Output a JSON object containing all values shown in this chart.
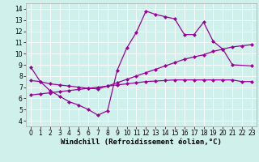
{
  "xlabel": "Windchill (Refroidissement éolien,°C)",
  "ylabel": "",
  "background_color": "#cff0eb",
  "line_color": "#990099",
  "xlim": [
    -0.5,
    23.5
  ],
  "ylim": [
    3.5,
    14.5
  ],
  "xticks": [
    0,
    1,
    2,
    3,
    4,
    5,
    6,
    7,
    8,
    9,
    10,
    11,
    12,
    13,
    14,
    15,
    16,
    17,
    18,
    19,
    20,
    21,
    22,
    23
  ],
  "yticks": [
    4,
    5,
    6,
    7,
    8,
    9,
    10,
    11,
    12,
    13,
    14
  ],
  "line1_x": [
    0,
    1,
    2,
    3,
    4,
    5,
    6,
    7,
    8,
    9,
    10,
    11,
    12,
    13,
    14,
    15,
    16,
    17,
    18,
    19,
    20,
    21,
    23
  ],
  "line1_y": [
    8.8,
    7.5,
    6.7,
    6.2,
    5.7,
    5.4,
    5.0,
    4.5,
    4.9,
    8.5,
    10.5,
    11.9,
    13.8,
    13.5,
    13.3,
    13.1,
    11.7,
    11.7,
    12.8,
    11.1,
    10.4,
    9.0,
    8.9
  ],
  "line2_x": [
    0,
    1,
    2,
    3,
    4,
    5,
    6,
    7,
    8,
    9,
    10,
    11,
    12,
    13,
    14,
    15,
    16,
    17,
    18,
    19,
    20,
    21,
    22,
    23
  ],
  "line2_y": [
    7.6,
    7.5,
    7.3,
    7.2,
    7.1,
    7.0,
    6.9,
    6.85,
    7.1,
    7.4,
    7.7,
    8.0,
    8.3,
    8.6,
    8.9,
    9.2,
    9.5,
    9.7,
    9.9,
    10.2,
    10.4,
    10.6,
    10.7,
    10.8
  ],
  "line3_x": [
    0,
    1,
    2,
    3,
    4,
    5,
    6,
    7,
    8,
    9,
    10,
    11,
    12,
    13,
    14,
    15,
    16,
    17,
    18,
    19,
    20,
    21,
    22,
    23
  ],
  "line3_y": [
    6.3,
    6.4,
    6.5,
    6.6,
    6.7,
    6.8,
    6.9,
    7.0,
    7.1,
    7.2,
    7.3,
    7.4,
    7.5,
    7.55,
    7.6,
    7.65,
    7.65,
    7.65,
    7.65,
    7.65,
    7.65,
    7.65,
    7.5,
    7.5
  ],
  "marker": "D",
  "markersize": 2.0,
  "linewidth": 0.9,
  "tick_fontsize": 5.5,
  "xlabel_fontsize": 6.5
}
